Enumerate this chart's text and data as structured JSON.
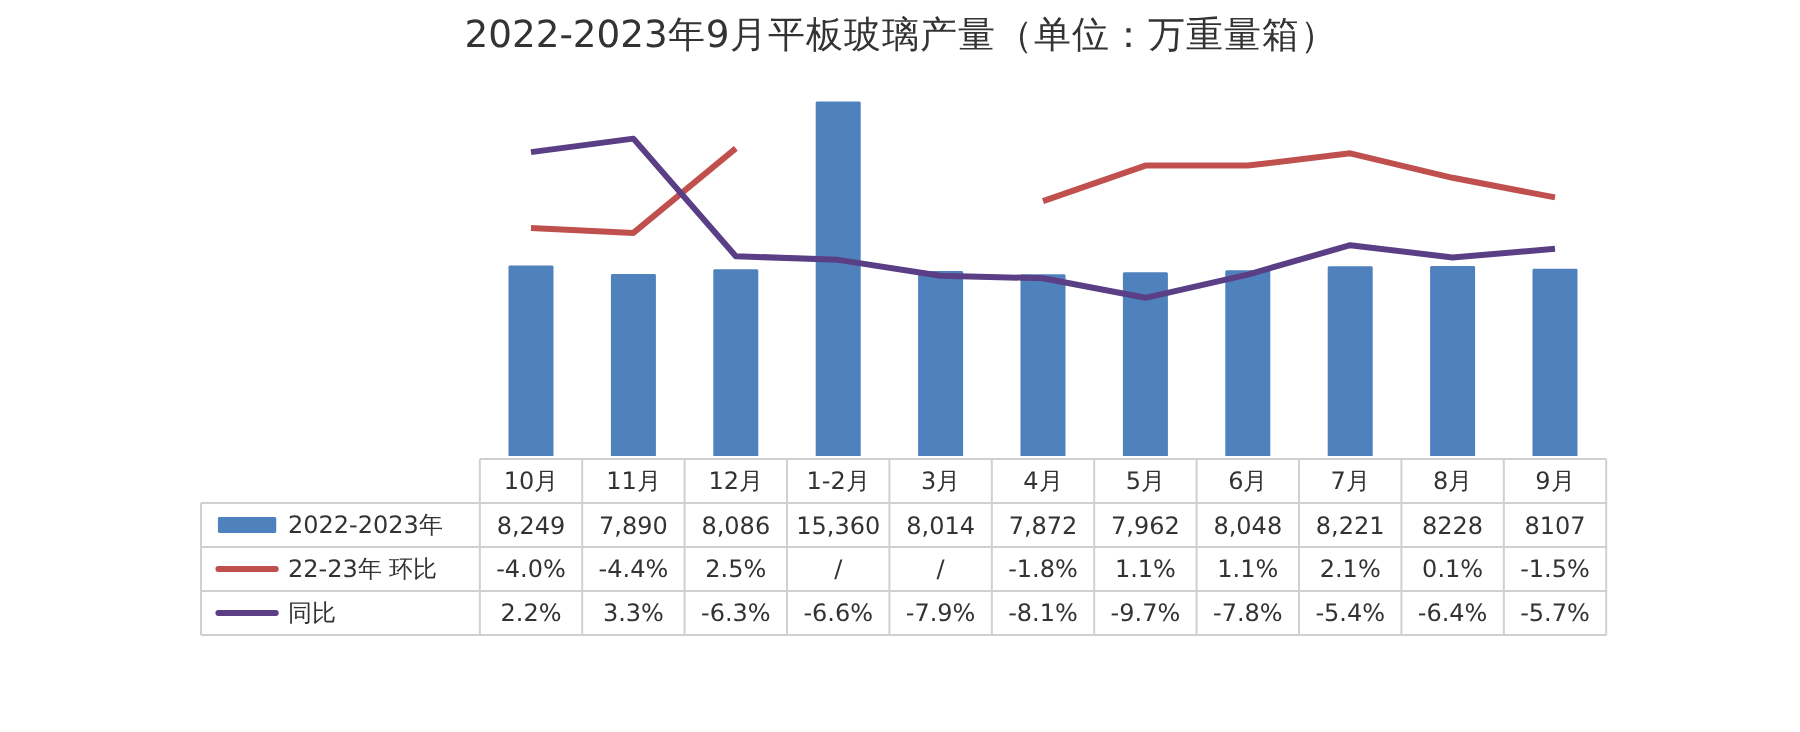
{
  "chart_data": {
    "type": "bar",
    "title": "2022-2023年9月平板玻璃产量（单位：万重量箱）",
    "categories": [
      "10月",
      "11月",
      "12月",
      "1-2月",
      "3月",
      "4月",
      "5月",
      "6月",
      "7月",
      "8月",
      "9月"
    ],
    "legend": "bottom",
    "series": [
      {
        "name": "2022-2023年",
        "color": "#4f81bd",
        "values": [
          8249,
          7890,
          8086,
          15360,
          8014,
          7872,
          7962,
          8048,
          8221,
          8228,
          8107
        ],
        "value_labels": [
          "8,249",
          "7,890",
          "8,086",
          "15,360",
          "8,014",
          "7,872",
          "7,962",
          "8,048",
          "8,221",
          "8228",
          "8107"
        ]
      },
      {
        "name": "22-23年 环比",
        "type": "line",
        "axis": "y2",
        "color": "#c0504d",
        "values": [
          -4.0,
          -4.4,
          2.5,
          null,
          null,
          -1.8,
          1.1,
          1.1,
          2.1,
          0.1,
          -1.5
        ],
        "value_labels": [
          "-4.0%",
          "-4.4%",
          "2.5%",
          "/",
          "/",
          "-1.8%",
          "1.1%",
          "1.1%",
          "2.1%",
          "0.1%",
          "-1.5%"
        ]
      },
      {
        "name": "同比",
        "type": "line",
        "axis": "y2",
        "color": "#5b3f86",
        "values": [
          2.2,
          3.3,
          -6.3,
          -6.6,
          -7.9,
          -8.1,
          -9.7,
          -7.8,
          -5.4,
          -6.4,
          -5.7
        ],
        "value_labels": [
          "2.2%",
          "3.3%",
          "-6.3%",
          "-6.6%",
          "-7.9%",
          "-8.1%",
          "-9.7%",
          "-7.8%",
          "-5.4%",
          "-6.4%",
          "-5.7%"
        ]
      }
    ]
  }
}
